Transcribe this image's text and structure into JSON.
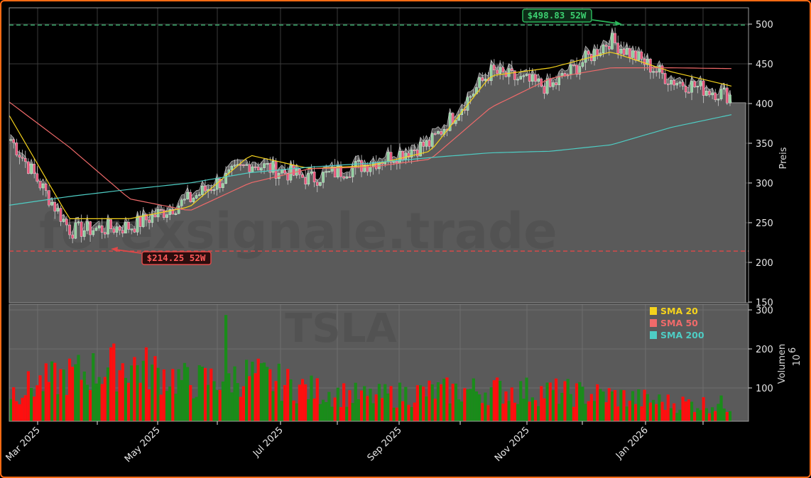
{
  "ticker": "TSLA",
  "watermark": "forexsignale.trade",
  "colors": {
    "background": "#000000",
    "frame_border": "#ff6a13",
    "area_fill": "#5a5a5a",
    "candle_up": "#8fd19e",
    "candle_down": "#e8557a",
    "volume_up": "#1a8c1a",
    "volume_down": "#ff0f0f",
    "sma20": "#f5d31c",
    "sma50": "#f06a6a",
    "sma200": "#4ecdc4",
    "high_line": "#3cb371",
    "low_line": "#e04848"
  },
  "axes": {
    "price_label": "Preis",
    "volume_label": "Volumen",
    "volume_multiplier": "10^6",
    "volume_multiplier_base": "10",
    "volume_multiplier_exp": "6",
    "price_ticks": [
      "150",
      "200",
      "250",
      "300",
      "350",
      "400",
      "450",
      "500"
    ],
    "volume_ticks": [
      "100",
      "200",
      "300"
    ],
    "x_ticks": [
      "Mar 2025",
      "May 2025",
      "Jul 2025",
      "Sep 2025",
      "Nov 2025",
      "Jan 2026"
    ]
  },
  "legend": {
    "items": [
      {
        "label": "SMA 20",
        "color": "#f5d31c"
      },
      {
        "label": "SMA 50",
        "color": "#f06a6a"
      },
      {
        "label": "SMA 200",
        "color": "#4ecdc4"
      }
    ]
  },
  "annotations": {
    "high": {
      "label": "$498.83 52W",
      "value": 498.83
    },
    "low": {
      "label": "$214.25 52W",
      "value": 214.25
    }
  },
  "chart_data": [
    {
      "type": "candlestick",
      "title": "TSLA",
      "xlabel": "",
      "ylabel": "Preis",
      "ylim": [
        150,
        515
      ],
      "grid": true,
      "legend_position": "lower-right of price panel",
      "x_ticks": [
        "Mar 2025",
        "May 2025",
        "Jul 2025",
        "Sep 2025",
        "Nov 2025",
        "Jan 2026"
      ],
      "x_range": [
        "2025-02",
        "2026-02"
      ],
      "close_approx": {
        "x": [
          "Feb 2025",
          "Mar 2025",
          "Apr 2025",
          "May 2025",
          "Jun 2025",
          "Jul 2025",
          "Aug 2025",
          "Sep 2025",
          "Oct 2025",
          "Nov 2025",
          "Dec 2025",
          "Jan 2026",
          "Feb 2026"
        ],
        "values": [
          355,
          240,
          245,
          280,
          325,
          305,
          325,
          350,
          440,
          420,
          480,
          430,
          410
        ]
      },
      "series": [
        {
          "name": "SMA 20",
          "x": [
            "Feb 2025",
            "Mar 2025",
            "Apr 2025",
            "May 2025",
            "Jun 2025",
            "Jul 2025",
            "Aug 2025",
            "Sep 2025",
            "Oct 2025",
            "Nov 2025",
            "Dec 2025",
            "Jan 2026",
            "Feb 2026"
          ],
          "values": [
            385,
            255,
            255,
            270,
            335,
            318,
            322,
            340,
            435,
            445,
            465,
            440,
            422
          ]
        },
        {
          "name": "SMA 50",
          "x": [
            "Feb 2025",
            "Mar 2025",
            "Apr 2025",
            "May 2025",
            "Jun 2025",
            "Jul 2025",
            "Aug 2025",
            "Sep 2025",
            "Oct 2025",
            "Nov 2025",
            "Dec 2025",
            "Jan 2026",
            "Feb 2026"
          ],
          "values": [
            402,
            345,
            280,
            265,
            300,
            318,
            320,
            330,
            395,
            432,
            445,
            445,
            444
          ]
        },
        {
          "name": "SMA 200",
          "x": [
            "Feb 2025",
            "Mar 2025",
            "Apr 2025",
            "May 2025",
            "Jun 2025",
            "Jul 2025",
            "Aug 2025",
            "Sep 2025",
            "Oct 2025",
            "Nov 2025",
            "Dec 2025",
            "Jan 2026",
            "Feb 2026"
          ],
          "values": [
            272,
            283,
            292,
            300,
            313,
            320,
            325,
            332,
            338,
            340,
            348,
            370,
            386
          ]
        }
      ],
      "reference_lines": [
        {
          "label": "$498.83 52W",
          "value": 498.83,
          "style": "dashed",
          "color": "#3cb371"
        },
        {
          "label": "$214.25 52W",
          "value": 214.25,
          "style": "dashed",
          "color": "#e04848"
        }
      ],
      "last_value": 401
    },
    {
      "type": "bar",
      "title": "Volumen",
      "ylabel": "Volumen (10^6)",
      "ylim": [
        15,
        310
      ],
      "y_ticks": [
        100,
        200,
        300
      ],
      "grid": true,
      "x": [
        "Feb 2025",
        "Mar 2025",
        "Apr 2025",
        "May 2025",
        "Jun 2025",
        "Jul 2025",
        "Aug 2025",
        "Sep 2025",
        "Oct 2025",
        "Nov 2025",
        "Dec 2025",
        "Jan 2026",
        "Feb 2026"
      ],
      "values": [
        95,
        140,
        170,
        120,
        140,
        100,
        80,
        95,
        100,
        95,
        85,
        65,
        60
      ],
      "peak": {
        "x": "Jun 2025",
        "value": 287
      },
      "colors": "green = up day, red = down day"
    }
  ]
}
